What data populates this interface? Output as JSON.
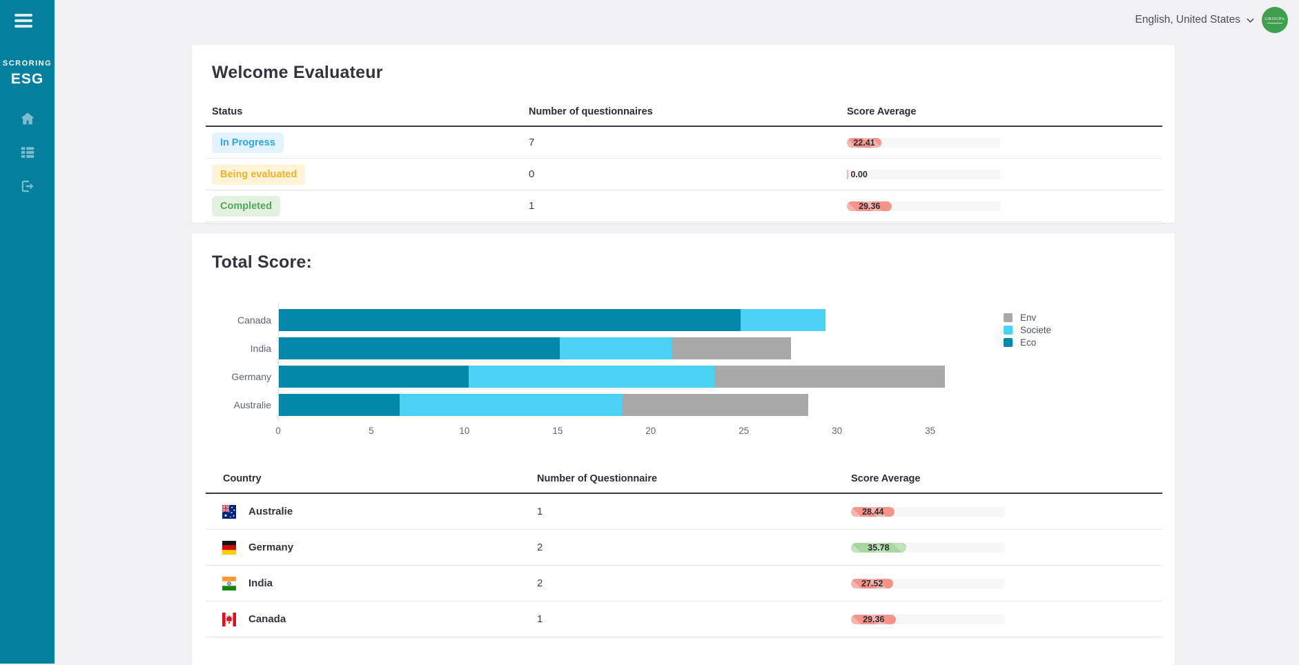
{
  "sidebar": {
    "brand_top": "SCRORING",
    "brand_main": "ESG",
    "nav": [
      {
        "icon": "home-icon"
      },
      {
        "icon": "list-icon"
      },
      {
        "icon": "logout-icon"
      }
    ]
  },
  "topbar": {
    "language": "English, United States",
    "avatar_text": "GROUPA"
  },
  "welcome_card": {
    "title": "Welcome Evaluateur",
    "table": {
      "headers": [
        "Status",
        "Number of questionnaires",
        "Score Average"
      ],
      "rows": [
        {
          "status": "In Progress",
          "variant": "blue",
          "count": "7",
          "score": 22.41,
          "score_label": "22.41",
          "bar_color": "red"
        },
        {
          "status": "Being evaluated",
          "variant": "yellow",
          "count": "0",
          "score": 0,
          "score_label": "0.00",
          "bar_color": "red"
        },
        {
          "status": "Completed",
          "variant": "green",
          "count": "1",
          "score": 29.36,
          "score_label": "29.36",
          "bar_color": "red"
        }
      ]
    }
  },
  "score_card": {
    "title": "Total Score:",
    "table": {
      "headers": [
        "Country",
        "Number of Questionnaire",
        "Score Average"
      ],
      "rows": [
        {
          "country": "Australie",
          "flag": "australia",
          "count": "1",
          "score": 28.44,
          "score_label": "28.44",
          "bar_color": "red"
        },
        {
          "country": "Germany",
          "flag": "germany",
          "count": "2",
          "score": 35.78,
          "score_label": "35.78",
          "bar_color": "green"
        },
        {
          "country": "India",
          "flag": "india",
          "count": "2",
          "score": 27.52,
          "score_label": "27.52",
          "bar_color": "red"
        },
        {
          "country": "Canada",
          "flag": "canada",
          "count": "1",
          "score": 29.36,
          "score_label": "29.36",
          "bar_color": "red"
        }
      ]
    }
  },
  "chart_data": {
    "type": "bar",
    "orientation": "horizontal",
    "stacked": true,
    "title": "Total Score:",
    "categories": [
      "Canada",
      "India",
      "Germany",
      "Australie"
    ],
    "series": [
      {
        "name": "Eco",
        "color": "#0187a8",
        "values": [
          24.8,
          15.1,
          10.2,
          6.5
        ]
      },
      {
        "name": "Societe",
        "color": "#4bd1f4",
        "values": [
          4.56,
          6.0,
          13.2,
          11.94
        ]
      },
      {
        "name": "Env",
        "color": "#a9a9a9",
        "values": [
          0,
          6.42,
          12.38,
          10.0
        ]
      }
    ],
    "totals": [
      29.36,
      27.52,
      35.78,
      28.44
    ],
    "xlim": [
      0,
      36.2
    ],
    "xticks": [
      0,
      5,
      10,
      15,
      20,
      25,
      30,
      35
    ],
    "grid": false,
    "legend": [
      "Env",
      "Societe",
      "Eco"
    ],
    "legend_position": "right"
  }
}
